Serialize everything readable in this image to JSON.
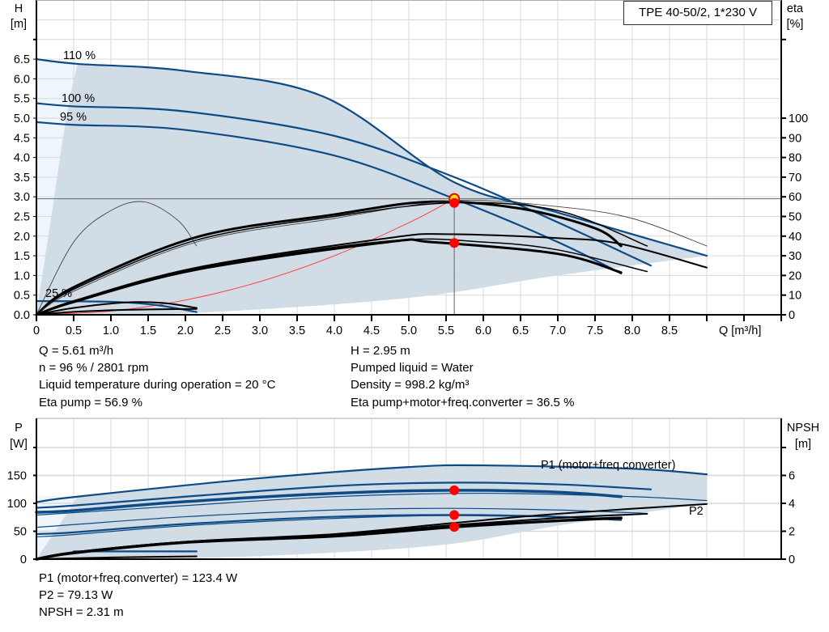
{
  "title": "TPE 40-50/2, 1*230 V",
  "colors": {
    "curve_blue": "#0e4a86",
    "shade": "#d0dce6",
    "shade_light": "#eef5fc",
    "operating_point": "#ff0000",
    "duty_marker": "#ffee00",
    "system_curve": "#ff3333",
    "grid": "#d9d9d9"
  },
  "duty_info": {
    "q": "Q = 5.61 m³/h",
    "h": "H = 2.95 m",
    "n": "n = 96 % / 2801 rpm",
    "liquid": "Pumped liquid = Water",
    "temp": "Liquid temperature during operation = 20 °C",
    "density": "Density = 998.2 kg/m³",
    "eta_pump": "Eta pump = 56.9 %",
    "eta_total": "Eta pump+motor+freq.converter = 36.5 %"
  },
  "power_info": {
    "p1": "P1 (motor+freq.converter) = 123.4 W",
    "p2": "P2 = 79.13 W",
    "npsh": "NPSH = 2.31 m"
  },
  "chart_data": [
    {
      "type": "line",
      "xlabel": "Q [m³/h]",
      "ylabel": [
        "H",
        "[m]"
      ],
      "y2label": [
        "eta",
        "[%]"
      ],
      "xlim": [
        0,
        10
      ],
      "ylim": [
        0,
        8
      ],
      "y2lim": [
        0,
        160
      ],
      "xticks": [
        "0",
        "0.5",
        "1.0",
        "1.5",
        "2.0",
        "2.5",
        "3.0",
        "3.5",
        "4.0",
        "4.5",
        "5.0",
        "5.5",
        "6.0",
        "6.5",
        "7.0",
        "7.5",
        "8.0",
        "8.5"
      ],
      "yticks": [
        "0.0",
        "0.5",
        "1.0",
        "1.5",
        "2.0",
        "2.5",
        "3.0",
        "3.5",
        "4.0",
        "4.5",
        "5.0",
        "5.5",
        "6.0",
        "6.5"
      ],
      "y2ticks": [
        "0",
        "10",
        "20",
        "30",
        "40",
        "50",
        "60",
        "70",
        "80",
        "90",
        "100"
      ],
      "grid": true,
      "series": [
        {
          "label": "110 %",
          "axis": "H",
          "kind": "head",
          "points": [
            [
              0,
              6.5
            ],
            [
              0.55,
              6.38
            ],
            [
              2,
              6.2
            ],
            [
              3.85,
              5.55
            ],
            [
              5.61,
              3.37
            ],
            [
              7,
              2.6
            ],
            [
              9,
              1.5
            ]
          ]
        },
        {
          "label": "100 %",
          "axis": "H",
          "kind": "head",
          "points": [
            [
              0,
              5.38
            ],
            [
              0.5,
              5.3
            ],
            [
              2,
              5.17
            ],
            [
              4,
              4.55
            ],
            [
              5.61,
              3.5
            ],
            [
              7,
              2.35
            ],
            [
              8.25,
              1.25
            ]
          ]
        },
        {
          "label": "95 %",
          "axis": "H",
          "kind": "head",
          "points": [
            [
              0,
              4.9
            ],
            [
              0.5,
              4.83
            ],
            [
              2,
              4.7
            ],
            [
              4,
              4.05
            ],
            [
              5.61,
              2.95
            ],
            [
              7,
              1.85
            ],
            [
              7.85,
              1.05
            ]
          ]
        },
        {
          "label": "25 %",
          "axis": "H",
          "kind": "head",
          "points": [
            [
              0,
              0.35
            ],
            [
              1,
              0.33
            ],
            [
              1.6,
              0.25
            ],
            [
              2.15,
              0.07
            ]
          ]
        },
        {
          "axis": "eta",
          "kind": "eta-thick",
          "points": [
            [
              0,
              0
            ],
            [
              0.5,
              14
            ],
            [
              2.15,
              39.5
            ],
            [
              4,
              51
            ],
            [
              5.3,
              57.5
            ],
            [
              6.5,
              54
            ],
            [
              7.5,
              44
            ],
            [
              7.85,
              35
            ]
          ]
        },
        {
          "axis": "eta",
          "kind": "eta-thin",
          "points": [
            [
              0,
              0
            ],
            [
              0.5,
              13
            ],
            [
              2.15,
              38
            ],
            [
              4,
              50
            ],
            [
              5.6,
              57
            ],
            [
              7,
              53
            ],
            [
              8.2,
              35
            ]
          ]
        },
        {
          "axis": "eta",
          "kind": "eta-hair",
          "points": [
            [
              0,
              0
            ],
            [
              0.5,
              12
            ],
            [
              2.15,
              37
            ],
            [
              4,
              49
            ],
            [
              5.6,
              58
            ],
            [
              7,
              55
            ],
            [
              8,
              49
            ],
            [
              9,
              35
            ]
          ]
        },
        {
          "axis": "eta",
          "kind": "eta-mid",
          "points": [
            [
              0,
              0
            ],
            [
              0.5,
              7
            ],
            [
              2.15,
              24
            ],
            [
              4.72,
              39
            ],
            [
              5.5,
              41
            ],
            [
              7,
              39
            ],
            [
              7.85,
              36
            ],
            [
              9,
              24
            ]
          ]
        },
        {
          "axis": "eta",
          "kind": "eta-thick",
          "points": [
            [
              0,
              0
            ],
            [
              0.5,
              6.5
            ],
            [
              2.15,
              23
            ],
            [
              4.72,
              37
            ],
            [
              5.3,
              37
            ],
            [
              7,
              31
            ],
            [
              7.85,
              21.5
            ]
          ]
        },
        {
          "axis": "eta",
          "kind": "eta-thin",
          "points": [
            [
              0,
              0
            ],
            [
              0.5,
              6.8
            ],
            [
              2.15,
              23.5
            ],
            [
              4.72,
              37.5
            ],
            [
              6,
              37
            ],
            [
              7,
              33
            ],
            [
              8.2,
              22
            ]
          ]
        },
        {
          "axis": "eta",
          "kind": "eta-hair",
          "points": [
            [
              0,
              0
            ],
            [
              0.5,
              37
            ],
            [
              1,
              53
            ],
            [
              1.45,
              57.4
            ],
            [
              1.9,
              48
            ],
            [
              2.15,
              35
            ]
          ]
        },
        {
          "axis": "eta",
          "kind": "eta-mid",
          "points": [
            [
              0,
              0
            ],
            [
              0.5,
              3.5
            ],
            [
              1.2,
              6.3
            ],
            [
              1.7,
              6
            ],
            [
              2.15,
              3.5
            ]
          ]
        },
        {
          "axis": "eta",
          "kind": "eta-mid",
          "points": [
            [
              0,
              0
            ],
            [
              0.5,
              1.5
            ],
            [
              1.2,
              2.5
            ],
            [
              2.15,
              3
            ]
          ]
        }
      ],
      "system_curve": {
        "points": [
          [
            0,
            0
          ],
          [
            1,
            0.094
          ],
          [
            2,
            0.375
          ],
          [
            3,
            0.843
          ],
          [
            4,
            1.5
          ],
          [
            5,
            2.34
          ],
          [
            5.61,
            2.95
          ]
        ]
      },
      "envelope": {
        "upper": [
          [
            0.55,
            6.38
          ],
          [
            2,
            6.2
          ],
          [
            3.85,
            5.55
          ],
          [
            5.61,
            3.37
          ],
          [
            7,
            2.6
          ],
          [
            9,
            1.5
          ]
        ],
        "lower": [
          [
            9,
            1.5
          ],
          [
            7,
            1.0
          ],
          [
            5,
            0.43
          ],
          [
            2.15,
            0.05
          ],
          [
            0.25,
            0
          ]
        ],
        "left": [
          [
            0,
            0
          ],
          [
            0.2,
            2.5
          ],
          [
            0.4,
            5
          ],
          [
            0.55,
            6.38
          ]
        ]
      },
      "operating_points": [
        {
          "q": 5.61,
          "h": 2.95,
          "marker": "duty"
        },
        {
          "q": 5.61,
          "eta": 56.9
        },
        {
          "q": 5.61,
          "eta": 36.5
        }
      ]
    },
    {
      "type": "line",
      "ylabel": [
        "P",
        "[W]"
      ],
      "y2label": [
        "NPSH",
        "[m]"
      ],
      "xlim": [
        0,
        10
      ],
      "ylim": [
        0,
        250
      ],
      "y2lim": [
        0,
        10
      ],
      "yticks": [
        "0",
        "50",
        "100",
        "150"
      ],
      "y2ticks": [
        "0",
        "2",
        "4",
        "6"
      ],
      "grid": true,
      "series": [
        {
          "label": "P1 (motor+freq.converter)",
          "axis": "P",
          "kind": "power",
          "points": [
            [
              0,
              102
            ],
            [
              0.55,
              112
            ],
            [
              3,
              145
            ],
            [
              5,
              165
            ],
            [
              6,
              168
            ],
            [
              8,
              162
            ],
            [
              9,
              152
            ]
          ]
        },
        {
          "axis": "P",
          "kind": "power",
          "points": [
            [
              0,
              92
            ],
            [
              0.5,
              96
            ],
            [
              2,
              112
            ],
            [
              4,
              131
            ],
            [
              5.5,
              137
            ],
            [
              7,
              134
            ],
            [
              8.25,
              125
            ]
          ]
        },
        {
          "axis": "P",
          "kind": "power-thick",
          "points": [
            [
              0,
              84
            ],
            [
              0.5,
              87
            ],
            [
              2,
              103
            ],
            [
              4,
              118
            ],
            [
              5.61,
              123.4
            ],
            [
              7,
              120
            ],
            [
              7.85,
              112
            ]
          ]
        },
        {
          "axis": "P",
          "kind": "power-thin",
          "points": [
            [
              0,
              79
            ],
            [
              2,
              96
            ],
            [
              4,
              112
            ],
            [
              6,
              118
            ],
            [
              8,
              112
            ],
            [
              9,
              105
            ]
          ]
        },
        {
          "label": "P2",
          "axis": "P",
          "kind": "power-thin",
          "points": [
            [
              0,
              57
            ],
            [
              2,
              76
            ],
            [
              4,
              88
            ],
            [
              5.5,
              91
            ],
            [
              7,
              88
            ],
            [
              8.2,
              82
            ]
          ]
        },
        {
          "axis": "P",
          "kind": "power",
          "points": [
            [
              0,
              45
            ],
            [
              0.5,
              48
            ],
            [
              2,
              63
            ],
            [
              4,
              76
            ],
            [
              5.61,
              79.13
            ],
            [
              7,
              76
            ],
            [
              7.85,
              70
            ]
          ]
        },
        {
          "axis": "P",
          "kind": "power-thin",
          "points": [
            [
              0,
              40
            ],
            [
              0.5,
              44
            ],
            [
              2,
              60
            ],
            [
              4,
              73
            ],
            [
              5.6,
              78
            ],
            [
              7.85,
              73
            ]
          ]
        },
        {
          "axis": "P",
          "kind": "power",
          "points": [
            [
              0.5,
              14
            ],
            [
              2.15,
              14
            ]
          ]
        },
        {
          "axis": "NPSH",
          "kind": "npsh-thick",
          "points": [
            [
              0,
              0
            ],
            [
              0.5,
              0.45
            ],
            [
              2,
              1.2
            ],
            [
              4,
              1.65
            ],
            [
              5.61,
              2.31
            ],
            [
              7,
              2.75
            ],
            [
              7.85,
              2.95
            ]
          ]
        },
        {
          "axis": "NPSH",
          "kind": "npsh",
          "points": [
            [
              0,
              0
            ],
            [
              0.5,
              0.5
            ],
            [
              2,
              1.25
            ],
            [
              4,
              1.75
            ],
            [
              5.61,
              2.45
            ],
            [
              7,
              2.95
            ],
            [
              8.2,
              3.25
            ]
          ]
        },
        {
          "axis": "NPSH",
          "kind": "npsh",
          "points": [
            [
              0,
              0
            ],
            [
              0.5,
              0.5
            ],
            [
              2,
              1.25
            ],
            [
              4,
              1.8
            ],
            [
              5.61,
              2.6
            ],
            [
              7,
              3.25
            ],
            [
              9,
              3.95
            ]
          ]
        },
        {
          "axis": "NPSH",
          "kind": "npsh",
          "points": [
            [
              0,
              0
            ],
            [
              1,
              0.12
            ],
            [
              2.15,
              0.2
            ]
          ]
        }
      ],
      "envelope": {
        "upper": [
          [
            0.55,
            112
          ],
          [
            3,
            145
          ],
          [
            5,
            165
          ],
          [
            6,
            168
          ],
          [
            8,
            162
          ],
          [
            9,
            152
          ]
        ],
        "lower": [
          [
            9,
            100
          ],
          [
            7,
            60
          ],
          [
            5.61,
            28
          ],
          [
            4,
            12
          ],
          [
            2.15,
            2
          ],
          [
            0.25,
            0
          ]
        ],
        "left": [
          [
            0,
            0
          ],
          [
            0.2,
            40
          ],
          [
            0.4,
            80
          ],
          [
            0.55,
            112
          ]
        ]
      },
      "operating_points": [
        {
          "q": 5.61,
          "p": 123.4
        },
        {
          "q": 5.61,
          "p": 79.13
        },
        {
          "q": 5.61,
          "npsh": 2.31
        }
      ]
    }
  ]
}
